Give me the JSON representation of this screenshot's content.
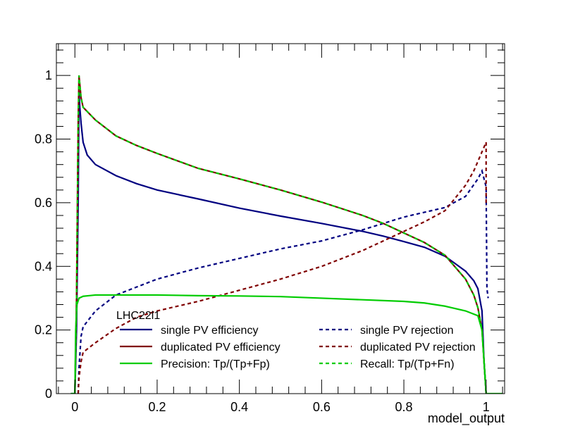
{
  "chart_data": {
    "type": "line",
    "title": "",
    "xlabel": "model_output",
    "ylabel": "",
    "xlim": [
      -0.045,
      1.045
    ],
    "ylim": [
      0,
      1.1
    ],
    "xticks": [
      0,
      0.2,
      0.4,
      0.6,
      0.8,
      1
    ],
    "xtick_labels": [
      "0",
      "0.2",
      "0.4",
      "0.6",
      "0.8",
      "1"
    ],
    "yticks": [
      0,
      0.2,
      0.4,
      0.6,
      0.8,
      1
    ],
    "ytick_labels": [
      "0",
      "0.2",
      "0.4",
      "0.6",
      "0.8",
      "1"
    ],
    "grid": false,
    "legend": {
      "header": "LHC22l1",
      "position": "bottom-center",
      "columns": 2
    },
    "series": [
      {
        "name": "single PV efficiency",
        "color": "#000080",
        "dash": "solid",
        "points": [
          [
            -0.01,
            0
          ],
          [
            0.0,
            0
          ],
          [
            0.004,
            0.2
          ],
          [
            0.008,
            0.6
          ],
          [
            0.01,
            0.95
          ],
          [
            0.012,
            0.9
          ],
          [
            0.015,
            0.85
          ],
          [
            0.02,
            0.79
          ],
          [
            0.03,
            0.75
          ],
          [
            0.05,
            0.72
          ],
          [
            0.1,
            0.685
          ],
          [
            0.15,
            0.66
          ],
          [
            0.2,
            0.64
          ],
          [
            0.3,
            0.612
          ],
          [
            0.4,
            0.583
          ],
          [
            0.5,
            0.558
          ],
          [
            0.6,
            0.535
          ],
          [
            0.7,
            0.51
          ],
          [
            0.75,
            0.495
          ],
          [
            0.8,
            0.478
          ],
          [
            0.85,
            0.46
          ],
          [
            0.9,
            0.432
          ],
          [
            0.95,
            0.385
          ],
          [
            0.97,
            0.355
          ],
          [
            0.98,
            0.33
          ],
          [
            0.99,
            0.26
          ],
          [
            0.995,
            0.1
          ],
          [
            1.0,
            0
          ]
        ]
      },
      {
        "name": "single PV rejection",
        "color": "#000080",
        "dash": "dashed",
        "points": [
          [
            0.008,
            0
          ],
          [
            0.01,
            0.08
          ],
          [
            0.015,
            0.18
          ],
          [
            0.02,
            0.21
          ],
          [
            0.05,
            0.26
          ],
          [
            0.1,
            0.31
          ],
          [
            0.15,
            0.335
          ],
          [
            0.2,
            0.36
          ],
          [
            0.3,
            0.395
          ],
          [
            0.4,
            0.425
          ],
          [
            0.5,
            0.455
          ],
          [
            0.6,
            0.48
          ],
          [
            0.7,
            0.515
          ],
          [
            0.75,
            0.535
          ],
          [
            0.8,
            0.555
          ],
          [
            0.85,
            0.57
          ],
          [
            0.9,
            0.585
          ],
          [
            0.95,
            0.62
          ],
          [
            0.98,
            0.675
          ],
          [
            0.99,
            0.7
          ],
          [
            1.0,
            0.65
          ],
          [
            1.002,
            0.33
          ],
          [
            1.005,
            0.3
          ]
        ]
      },
      {
        "name": "duplicated PV efficiency",
        "color": "#800000",
        "dash": "solid",
        "points": [
          [
            0.0,
            0
          ],
          [
            0.004,
            0.3
          ],
          [
            0.008,
            0.85
          ],
          [
            0.01,
            1.0
          ],
          [
            0.015,
            0.93
          ],
          [
            0.02,
            0.9
          ],
          [
            0.05,
            0.86
          ],
          [
            0.1,
            0.81
          ],
          [
            0.15,
            0.78
          ],
          [
            0.2,
            0.755
          ],
          [
            0.3,
            0.708
          ],
          [
            0.4,
            0.675
          ],
          [
            0.5,
            0.64
          ],
          [
            0.6,
            0.602
          ],
          [
            0.7,
            0.56
          ],
          [
            0.75,
            0.535
          ],
          [
            0.8,
            0.505
          ],
          [
            0.85,
            0.475
          ],
          [
            0.9,
            0.435
          ],
          [
            0.95,
            0.36
          ],
          [
            0.97,
            0.31
          ],
          [
            0.98,
            0.27
          ],
          [
            0.99,
            0.2
          ],
          [
            0.995,
            0.1
          ],
          [
            1.0,
            0
          ]
        ]
      },
      {
        "name": "duplicated PV rejection",
        "color": "#800000",
        "dash": "dashed",
        "points": [
          [
            0.008,
            0
          ],
          [
            0.01,
            0.05
          ],
          [
            0.015,
            0.1
          ],
          [
            0.02,
            0.13
          ],
          [
            0.05,
            0.16
          ],
          [
            0.1,
            0.205
          ],
          [
            0.15,
            0.24
          ],
          [
            0.2,
            0.26
          ],
          [
            0.3,
            0.29
          ],
          [
            0.4,
            0.325
          ],
          [
            0.5,
            0.36
          ],
          [
            0.6,
            0.4
          ],
          [
            0.7,
            0.45
          ],
          [
            0.75,
            0.48
          ],
          [
            0.8,
            0.51
          ],
          [
            0.85,
            0.54
          ],
          [
            0.9,
            0.575
          ],
          [
            0.95,
            0.655
          ],
          [
            0.97,
            0.7
          ],
          [
            0.98,
            0.73
          ],
          [
            0.99,
            0.76
          ],
          [
            1.0,
            0.79
          ],
          [
            1.0,
            0.59
          ]
        ]
      },
      {
        "name": "Precision: Tp/(Tp+Fp)",
        "color": "#00cc00",
        "dash": "solid",
        "points": [
          [
            -0.01,
            0
          ],
          [
            0.0,
            0
          ],
          [
            0.002,
            0.2
          ],
          [
            0.005,
            0.28
          ],
          [
            0.01,
            0.3
          ],
          [
            0.02,
            0.306
          ],
          [
            0.05,
            0.31
          ],
          [
            0.1,
            0.31
          ],
          [
            0.2,
            0.31
          ],
          [
            0.3,
            0.308
          ],
          [
            0.4,
            0.307
          ],
          [
            0.5,
            0.305
          ],
          [
            0.6,
            0.3
          ],
          [
            0.7,
            0.295
          ],
          [
            0.8,
            0.29
          ],
          [
            0.85,
            0.285
          ],
          [
            0.9,
            0.275
          ],
          [
            0.95,
            0.26
          ],
          [
            0.98,
            0.245
          ],
          [
            0.99,
            0.2
          ],
          [
            0.995,
            0.1
          ],
          [
            1.0,
            0
          ],
          [
            1.04,
            0
          ]
        ]
      },
      {
        "name": "Recall: Tp/(Tp+Fn)",
        "color": "#00cc00",
        "dash": "dashed",
        "points": [
          [
            0.0,
            0
          ],
          [
            0.004,
            0.3
          ],
          [
            0.008,
            0.85
          ],
          [
            0.01,
            1.0
          ],
          [
            0.015,
            0.93
          ],
          [
            0.02,
            0.9
          ],
          [
            0.05,
            0.86
          ],
          [
            0.1,
            0.81
          ],
          [
            0.15,
            0.78
          ],
          [
            0.2,
            0.755
          ],
          [
            0.3,
            0.708
          ],
          [
            0.4,
            0.675
          ],
          [
            0.5,
            0.64
          ],
          [
            0.6,
            0.602
          ],
          [
            0.7,
            0.56
          ],
          [
            0.75,
            0.535
          ],
          [
            0.8,
            0.505
          ],
          [
            0.85,
            0.475
          ],
          [
            0.9,
            0.435
          ],
          [
            0.95,
            0.36
          ],
          [
            0.97,
            0.31
          ],
          [
            0.98,
            0.27
          ],
          [
            0.99,
            0.2
          ],
          [
            0.995,
            0.1
          ],
          [
            1.0,
            0
          ]
        ]
      }
    ]
  }
}
